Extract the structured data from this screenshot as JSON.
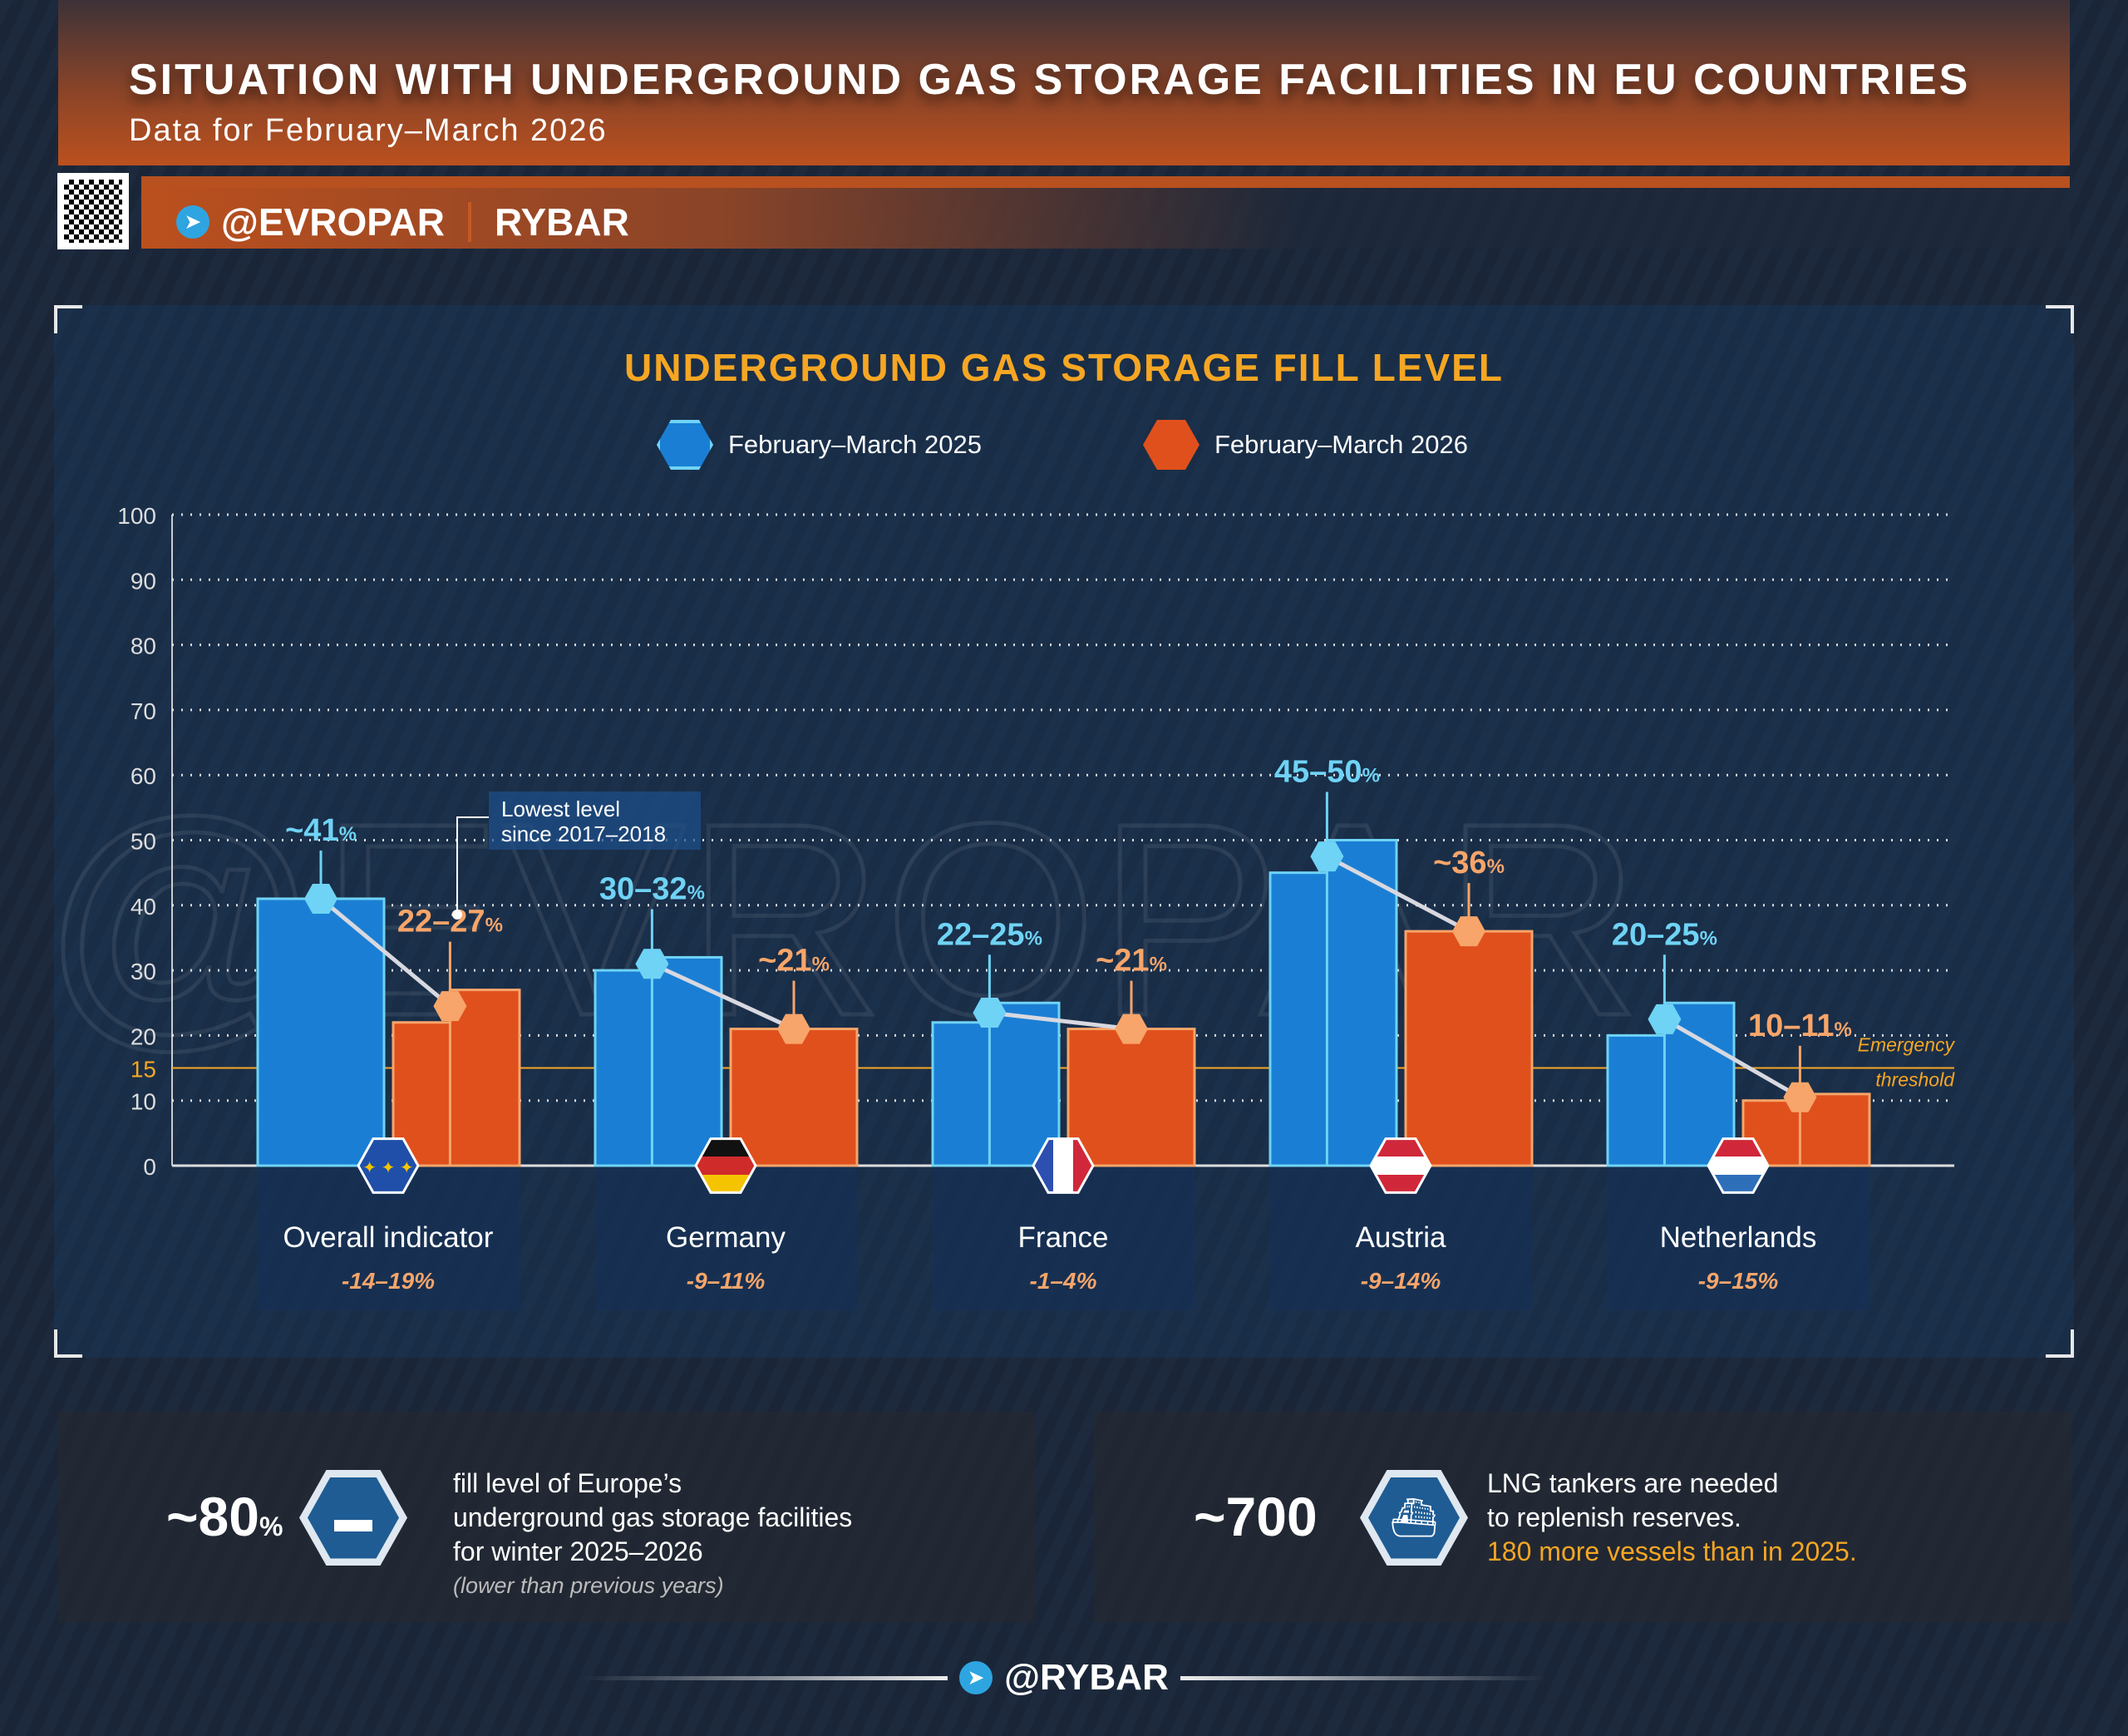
{
  "header": {
    "title": "SITUATION WITH UNDERGROUND GAS STORAGE FACILITIES IN EU COUNTRIES",
    "subtitle": "Data for February–March 2026",
    "channel": "@EVROPAR",
    "brand": "RYBAR",
    "watermark": "@EVROPAR"
  },
  "colors": {
    "blue": "#1a7fd4",
    "orange": "#e0501c",
    "accent": "#f5a623",
    "blue_label": "#6fd3f5",
    "orange_label": "#f7a56a"
  },
  "chart_data": {
    "type": "bar",
    "title": "UNDERGROUND GAS STORAGE FILL LEVEL",
    "ylim": [
      0,
      100
    ],
    "yticks": [
      0,
      10,
      15,
      20,
      30,
      40,
      50,
      60,
      70,
      80,
      90,
      100
    ],
    "grid": true,
    "legend_placement": "top-center",
    "categories": [
      "Overall indicator",
      "Germany",
      "France",
      "Austria",
      "Netherlands"
    ],
    "changes": [
      "-14–19%",
      "-9–11%",
      "-1–4%",
      "-9–14%",
      "-9–15%"
    ],
    "flags": [
      "eu",
      "de",
      "fr",
      "at",
      "nl"
    ],
    "series": [
      {
        "name": "February–March 2025",
        "low": [
          41,
          30,
          22,
          45,
          20
        ],
        "high": [
          41,
          32,
          25,
          50,
          25
        ],
        "labels": [
          "~41",
          "30–32",
          "22–25",
          "45–50",
          "20–25"
        ]
      },
      {
        "name": "February–March 2026",
        "low": [
          22,
          21,
          21,
          36,
          10
        ],
        "high": [
          27,
          21,
          21,
          36,
          11
        ],
        "labels": [
          "22–27",
          "~21",
          "~21",
          "~36",
          "10–11"
        ]
      }
    ],
    "threshold": {
      "value": 15,
      "label_line1": "Emergency",
      "label_line2": "threshold"
    },
    "annotation": {
      "line1": "Lowest level",
      "line2": "since 2017–2018"
    },
    "percent_sign": "%"
  },
  "stats": [
    {
      "value": "~80",
      "unit": "%",
      "icon": "gas-tank-icon",
      "lines": [
        "fill level of Europe’s",
        "underground gas storage facilities",
        "for winter 2025–2026"
      ],
      "note": "(lower than previous years)"
    },
    {
      "value": "~700",
      "icon": "lng-tanker-icon",
      "lines": [
        "LNG tankers are needed",
        "to replenish reserves."
      ],
      "highlight": "180 more vessels than in 2025."
    }
  ],
  "footer": {
    "handle": "@RYBAR"
  }
}
